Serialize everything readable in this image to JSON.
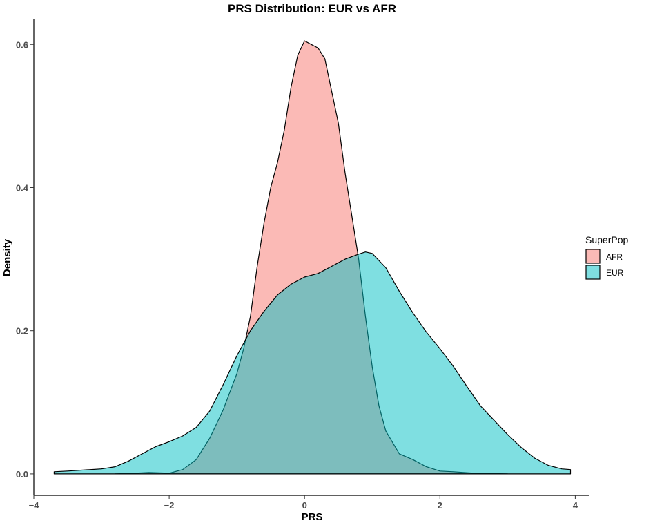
{
  "chart_data": {
    "type": "area",
    "title": "PRS Distribution: EUR vs AFR",
    "xlabel": "PRS",
    "ylabel": "Density",
    "xlim": [
      -4.0,
      4.2
    ],
    "ylim": [
      -0.03,
      0.635
    ],
    "x_ticks": [
      -4,
      -2,
      0,
      2,
      4
    ],
    "x_tick_labels": [
      "−4",
      "−2",
      "0",
      "2",
      "4"
    ],
    "y_ticks": [
      0.0,
      0.2,
      0.4,
      0.6
    ],
    "y_tick_labels": [
      "0.0",
      "0.2",
      "0.4",
      "0.6"
    ],
    "grid": false,
    "legend": {
      "title": "SuperPop",
      "position": "right"
    },
    "series": [
      {
        "name": "AFR",
        "color": "#F8766D",
        "opacity": 0.5,
        "points": [
          [
            -2.8,
            0.0
          ],
          [
            -2.5,
            0.001
          ],
          [
            -2.3,
            0.002
          ],
          [
            -2.0,
            0.001
          ],
          [
            -1.8,
            0.006
          ],
          [
            -1.6,
            0.02
          ],
          [
            -1.4,
            0.05
          ],
          [
            -1.2,
            0.09
          ],
          [
            -1.0,
            0.14
          ],
          [
            -0.9,
            0.175
          ],
          [
            -0.8,
            0.22
          ],
          [
            -0.7,
            0.29
          ],
          [
            -0.6,
            0.35
          ],
          [
            -0.5,
            0.4
          ],
          [
            -0.4,
            0.435
          ],
          [
            -0.3,
            0.48
          ],
          [
            -0.2,
            0.54
          ],
          [
            -0.1,
            0.585
          ],
          [
            0.0,
            0.605
          ],
          [
            0.1,
            0.6
          ],
          [
            0.2,
            0.595
          ],
          [
            0.3,
            0.58
          ],
          [
            0.4,
            0.535
          ],
          [
            0.5,
            0.49
          ],
          [
            0.6,
            0.42
          ],
          [
            0.7,
            0.36
          ],
          [
            0.8,
            0.3
          ],
          [
            0.9,
            0.22
          ],
          [
            1.0,
            0.15
          ],
          [
            1.1,
            0.095
          ],
          [
            1.2,
            0.06
          ],
          [
            1.4,
            0.028
          ],
          [
            1.6,
            0.02
          ],
          [
            1.8,
            0.01
          ],
          [
            2.0,
            0.004
          ],
          [
            2.2,
            0.003
          ],
          [
            2.5,
            0.001
          ],
          [
            3.0,
            0.0
          ]
        ]
      },
      {
        "name": "EUR",
        "color": "#00BFC4",
        "opacity": 0.5,
        "points": [
          [
            -3.7,
            0.003
          ],
          [
            -3.5,
            0.004
          ],
          [
            -3.0,
            0.007
          ],
          [
            -2.8,
            0.01
          ],
          [
            -2.6,
            0.018
          ],
          [
            -2.4,
            0.028
          ],
          [
            -2.2,
            0.038
          ],
          [
            -2.0,
            0.045
          ],
          [
            -1.8,
            0.053
          ],
          [
            -1.6,
            0.065
          ],
          [
            -1.4,
            0.088
          ],
          [
            -1.2,
            0.125
          ],
          [
            -1.0,
            0.165
          ],
          [
            -0.8,
            0.2
          ],
          [
            -0.6,
            0.227
          ],
          [
            -0.4,
            0.25
          ],
          [
            -0.2,
            0.265
          ],
          [
            0.0,
            0.275
          ],
          [
            0.2,
            0.28
          ],
          [
            0.4,
            0.29
          ],
          [
            0.6,
            0.3
          ],
          [
            0.8,
            0.307
          ],
          [
            0.9,
            0.31
          ],
          [
            1.0,
            0.308
          ],
          [
            1.2,
            0.288
          ],
          [
            1.4,
            0.255
          ],
          [
            1.6,
            0.225
          ],
          [
            1.8,
            0.198
          ],
          [
            2.0,
            0.175
          ],
          [
            2.2,
            0.15
          ],
          [
            2.4,
            0.122
          ],
          [
            2.6,
            0.095
          ],
          [
            2.8,
            0.075
          ],
          [
            3.0,
            0.055
          ],
          [
            3.2,
            0.037
          ],
          [
            3.4,
            0.022
          ],
          [
            3.6,
            0.012
          ],
          [
            3.8,
            0.007
          ],
          [
            3.93,
            0.006
          ]
        ]
      }
    ]
  }
}
